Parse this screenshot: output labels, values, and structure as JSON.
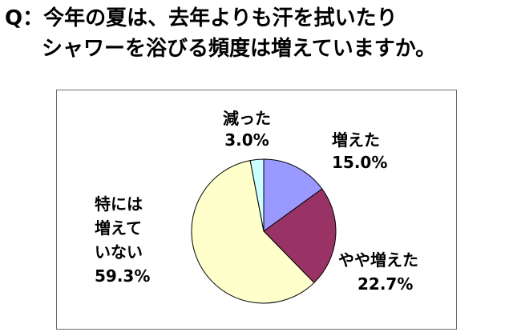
{
  "question": {
    "line1": "Q：今年の夏は、去年よりも汗を拭いたり",
    "line2": "シャワーを浴びる頻度は増えていますか。"
  },
  "chart_data": {
    "type": "pie",
    "categories": [
      "増えた",
      "やや増えた",
      "特には増えていない",
      "減った"
    ],
    "values": [
      15.0,
      22.7,
      59.3,
      3.0
    ],
    "value_labels": [
      "15.0%",
      "22.7%",
      "59.3%",
      "3.0%"
    ],
    "colors": [
      "#9999ff",
      "#993366",
      "#ffffcc",
      "#ccffff"
    ],
    "start": "12 o'clock, clockwise",
    "legend": "none (labels beside slices)"
  },
  "labels": {
    "increased": {
      "name": "増えた",
      "value": "15.0%"
    },
    "slightly": {
      "name": "やや増えた",
      "value": "22.7%"
    },
    "none": {
      "line1": "特には",
      "line2": "増えて",
      "line3": "いない",
      "value": "59.3%"
    },
    "decreased": {
      "name": "減った",
      "value": "3.0%"
    }
  }
}
